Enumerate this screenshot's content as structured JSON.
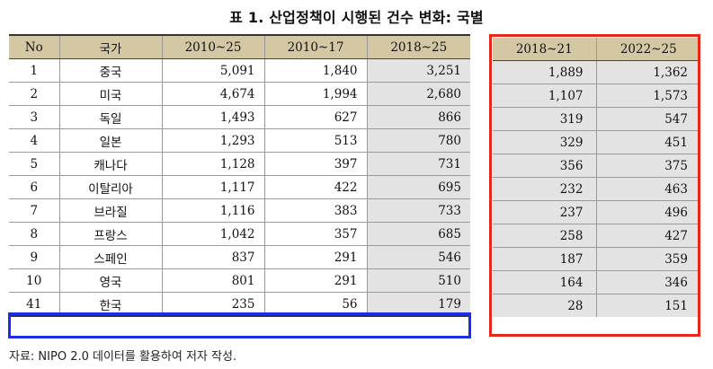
{
  "title": "표 1. 산업정책이 시행된 건수 변화: 국별",
  "main_table": {
    "headers": [
      "No",
      "국가",
      "2010~25",
      "2010~17",
      "2018~25"
    ],
    "rows": [
      {
        "no": "1",
        "country": "중국",
        "c1": "5,091",
        "c2": "1,840",
        "c3": "3,251"
      },
      {
        "no": "2",
        "country": "미국",
        "c1": "4,674",
        "c2": "1,994",
        "c3": "2,680"
      },
      {
        "no": "3",
        "country": "독일",
        "c1": "1,493",
        "c2": "627",
        "c3": "866"
      },
      {
        "no": "4",
        "country": "일본",
        "c1": "1,293",
        "c2": "513",
        "c3": "780"
      },
      {
        "no": "5",
        "country": "캐나다",
        "c1": "1,128",
        "c2": "397",
        "c3": "731"
      },
      {
        "no": "6",
        "country": "이탈리아",
        "c1": "1,117",
        "c2": "422",
        "c3": "695"
      },
      {
        "no": "7",
        "country": "브라질",
        "c1": "1,116",
        "c2": "383",
        "c3": "733"
      },
      {
        "no": "8",
        "country": "프랑스",
        "c1": "1,042",
        "c2": "357",
        "c3": "685"
      },
      {
        "no": "9",
        "country": "스페인",
        "c1": "837",
        "c2": "291",
        "c3": "546"
      },
      {
        "no": "10",
        "country": "영국",
        "c1": "801",
        "c2": "291",
        "c3": "510"
      },
      {
        "no": "41",
        "country": "한국",
        "c1": "235",
        "c2": "56",
        "c3": "179"
      }
    ]
  },
  "right_table": {
    "headers": [
      "2018~21",
      "2022~25"
    ],
    "rows": [
      {
        "a": "1,889",
        "b": "1,362"
      },
      {
        "a": "1,107",
        "b": "1,573"
      },
      {
        "a": "319",
        "b": "547"
      },
      {
        "a": "329",
        "b": "451"
      },
      {
        "a": "356",
        "b": "375"
      },
      {
        "a": "232",
        "b": "463"
      },
      {
        "a": "237",
        "b": "496"
      },
      {
        "a": "258",
        "b": "427"
      },
      {
        "a": "187",
        "b": "359"
      },
      {
        "a": "164",
        "b": "346"
      },
      {
        "a": "28",
        "b": "151"
      }
    ]
  },
  "source": "자료: NIPO 2.0 데이터를 활용하여 저자 작성.",
  "colors": {
    "header_bg": "#d4c8a4",
    "shade": "#e3e3e3",
    "red_box": "#e8261c",
    "blue_box": "#1b2ee6"
  }
}
